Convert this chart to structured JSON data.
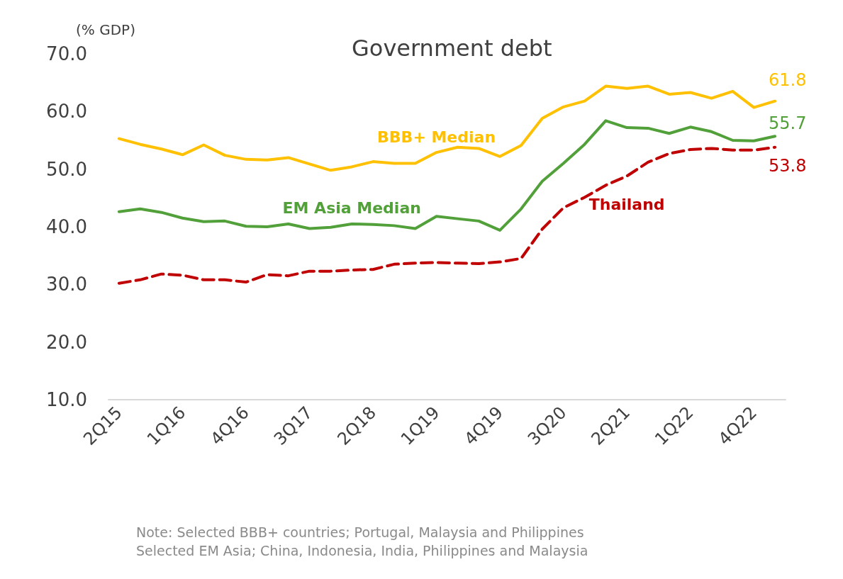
{
  "chart_data": {
    "type": "line",
    "title": "Government debt",
    "ylabel": "(% GDP)",
    "categories": [
      "2Q15",
      null,
      null,
      "1Q16",
      null,
      null,
      "4Q16",
      null,
      null,
      "3Q17",
      null,
      null,
      "2Q18",
      null,
      null,
      "1Q19",
      null,
      null,
      "4Q19",
      null,
      null,
      "3Q20",
      null,
      null,
      "2Q21",
      null,
      null,
      "1Q22",
      null,
      null,
      "4Q22",
      null
    ],
    "series": [
      {
        "name": "BBB+ Median",
        "color": "#ffc000",
        "line_style": "solid",
        "values": [
          55.3,
          54.3,
          53.5,
          52.5,
          54.2,
          52.4,
          51.7,
          51.6,
          52.0,
          50.9,
          49.8,
          50.4,
          51.3,
          51.0,
          51.0,
          52.9,
          53.8,
          53.6,
          52.2,
          54.1,
          58.8,
          60.8,
          61.8,
          64.4,
          64.0,
          64.4,
          63.0,
          63.3,
          62.3,
          63.5,
          60.7,
          61.8
        ],
        "value_labels": [
          null,
          null,
          null,
          null,
          null,
          null,
          null,
          null,
          null,
          null,
          null,
          null,
          null,
          null,
          null,
          null,
          null,
          null,
          null,
          null,
          null,
          null,
          null,
          null,
          null,
          null,
          null,
          null,
          null,
          null,
          null,
          "61.8"
        ]
      },
      {
        "name": "EM Asia Median",
        "color": "#52a03a",
        "line_style": "solid",
        "values": [
          42.6,
          43.1,
          42.5,
          41.5,
          40.9,
          41.0,
          40.1,
          40.0,
          40.5,
          39.7,
          39.9,
          40.5,
          40.4,
          40.2,
          39.7,
          41.8,
          41.4,
          41.0,
          39.4,
          43.1,
          47.9,
          51.0,
          54.3,
          58.4,
          57.2,
          57.1,
          56.2,
          57.3,
          56.5,
          55.0,
          54.9,
          55.7
        ],
        "value_labels": [
          null,
          null,
          null,
          null,
          null,
          null,
          null,
          null,
          null,
          null,
          null,
          null,
          null,
          null,
          null,
          null,
          null,
          null,
          null,
          null,
          null,
          null,
          null,
          null,
          null,
          null,
          null,
          null,
          null,
          null,
          null,
          "55.7"
        ]
      },
      {
        "name": "Thailand",
        "color": "#c00000",
        "line_style": "dashed",
        "values": [
          30.2,
          30.8,
          31.8,
          31.6,
          30.8,
          30.8,
          30.4,
          31.7,
          31.5,
          32.3,
          32.3,
          32.5,
          32.6,
          33.5,
          33.7,
          33.8,
          33.7,
          33.6,
          33.9,
          34.5,
          39.6,
          43.3,
          45.1,
          47.2,
          48.8,
          51.2,
          52.7,
          53.4,
          53.6,
          53.3,
          53.3,
          53.8
        ],
        "value_labels": [
          null,
          null,
          null,
          null,
          null,
          null,
          null,
          null,
          null,
          null,
          null,
          null,
          null,
          null,
          null,
          null,
          null,
          null,
          null,
          null,
          null,
          null,
          null,
          null,
          null,
          null,
          null,
          null,
          null,
          null,
          null,
          "53.8"
        ]
      }
    ],
    "ylim": [
      10,
      70
    ],
    "yticks": [
      {
        "value": 10,
        "label": "10.0"
      },
      {
        "value": 20,
        "label": "20.0"
      },
      {
        "value": 30,
        "label": "30.0"
      },
      {
        "value": 40,
        "label": "40.0"
      },
      {
        "value": 50,
        "label": "50.0"
      },
      {
        "value": 60,
        "label": "60.0"
      },
      {
        "value": 70,
        "label": "70.0"
      }
    ],
    "grid": false,
    "legend": false,
    "marker": "none",
    "annotations": [
      "Note: Selected BBB+ countries; Portugal, Malaysia and Philippines\nSelected EM Asia; China, Indonesia, India, Philippines and Malaysia"
    ]
  }
}
